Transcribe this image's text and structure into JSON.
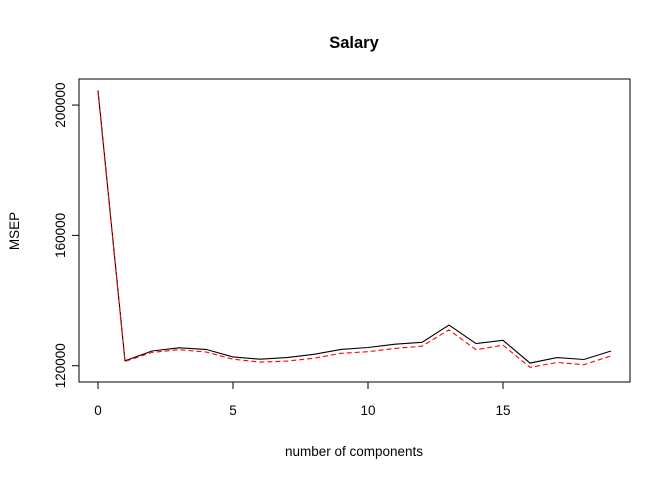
{
  "chart_data": {
    "type": "line",
    "title": "Salary",
    "xlabel": "number of components",
    "ylabel": "MSEP",
    "xlim": [
      0,
      19
    ],
    "ylim": [
      115000,
      208000
    ],
    "x_ticks": [
      0,
      5,
      10,
      15
    ],
    "y_ticks": [
      120000,
      160000,
      200000
    ],
    "grid": false,
    "x": [
      0,
      1,
      2,
      3,
      4,
      5,
      6,
      7,
      8,
      9,
      10,
      11,
      12,
      13,
      14,
      15,
      16,
      17,
      18,
      19
    ],
    "series": [
      {
        "color": "#000000",
        "dash": "solid",
        "values": [
          204500,
          121500,
          124500,
          125500,
          125000,
          122700,
          122000,
          122500,
          123500,
          125000,
          125600,
          126600,
          127200,
          132500,
          126800,
          127800,
          120800,
          122500,
          121900,
          124500
        ]
      },
      {
        "color": "#ff0000",
        "dash": "dashed",
        "values": [
          204000,
          121300,
          124100,
          124900,
          124200,
          122000,
          121100,
          121400,
          122300,
          123800,
          124300,
          125300,
          126000,
          131000,
          124900,
          126300,
          119500,
          121000,
          120300,
          123000
        ]
      }
    ]
  }
}
